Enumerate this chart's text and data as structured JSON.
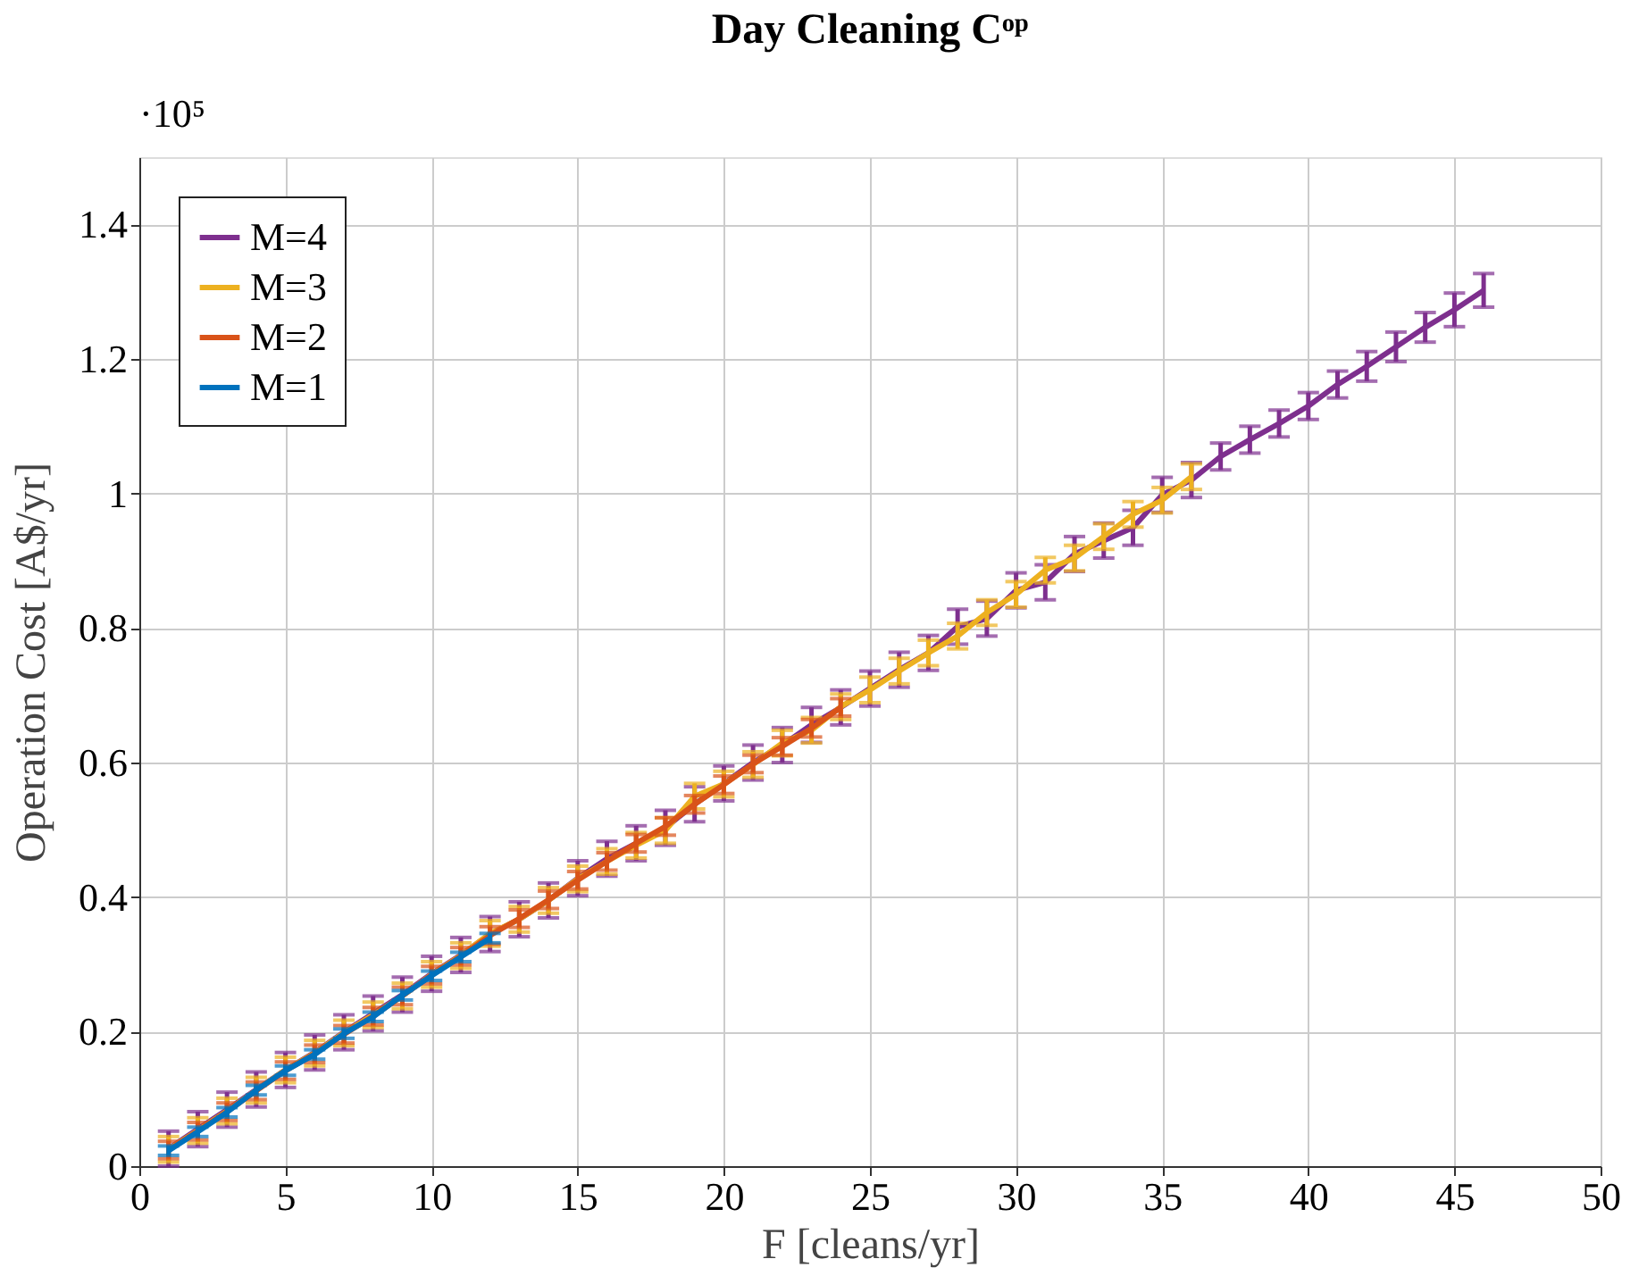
{
  "chart_data": {
    "type": "line",
    "title": "Day Cleaning Cᵒᵖ",
    "xlabel": "F [cleans/yr]",
    "ylabel": "Operation Cost [A$/yr]",
    "annotations": [
      "·10⁵"
    ],
    "xlim": [
      0,
      50
    ],
    "xticks": [
      0,
      5,
      10,
      15,
      20,
      25,
      30,
      35,
      40,
      45,
      50
    ],
    "ylim": [
      0,
      1.5
    ],
    "yticks": [
      0,
      0.2,
      0.4,
      0.6,
      0.8,
      1,
      1.2,
      1.4
    ],
    "grid": true,
    "legend": "top left",
    "marker": "none",
    "line_style": "solid",
    "series": [
      {
        "name": "M=4",
        "color": "#7e2f8e",
        "x": [
          1,
          2,
          3,
          4,
          5,
          6,
          7,
          8,
          9,
          10,
          11,
          12,
          13,
          14,
          15,
          16,
          17,
          18,
          19,
          20,
          21,
          22,
          23,
          24,
          25,
          26,
          27,
          28,
          29,
          30,
          31,
          32,
          33,
          34,
          35,
          36,
          37,
          38,
          39,
          40,
          41,
          42,
          43,
          44,
          45,
          46
        ],
        "values": [
          0.026,
          0.055,
          0.084,
          0.114,
          0.143,
          0.169,
          0.199,
          0.227,
          0.255,
          0.286,
          0.314,
          0.345,
          0.367,
          0.395,
          0.428,
          0.457,
          0.48,
          0.503,
          0.538,
          0.569,
          0.6,
          0.626,
          0.656,
          0.682,
          0.71,
          0.738,
          0.763,
          0.802,
          0.814,
          0.856,
          0.868,
          0.91,
          0.93,
          0.949,
          0.998,
          1.02,
          1.055,
          1.08,
          1.104,
          1.13,
          1.162,
          1.189,
          1.218,
          1.247,
          1.273,
          1.302
        ],
        "errors": [
          0.026,
          0.026,
          0.026,
          0.026,
          0.026,
          0.026,
          0.026,
          0.026,
          0.026,
          0.026,
          0.026,
          0.026,
          0.026,
          0.026,
          0.026,
          0.026,
          0.026,
          0.026,
          0.026,
          0.026,
          0.026,
          0.026,
          0.026,
          0.026,
          0.026,
          0.026,
          0.026,
          0.026,
          0.026,
          0.026,
          0.026,
          0.026,
          0.026,
          0.026,
          0.026,
          0.026,
          0.02,
          0.02,
          0.02,
          0.02,
          0.02,
          0.022,
          0.022,
          0.022,
          0.025,
          0.025
        ]
      },
      {
        "name": "M=3",
        "color": "#edb120",
        "x": [
          1,
          2,
          3,
          4,
          5,
          6,
          7,
          8,
          9,
          10,
          11,
          12,
          13,
          14,
          15,
          16,
          17,
          18,
          19,
          20,
          21,
          22,
          23,
          24,
          25,
          26,
          27,
          28,
          29,
          30,
          31,
          32,
          33,
          34,
          35,
          36
        ],
        "values": [
          0.025,
          0.053,
          0.082,
          0.113,
          0.143,
          0.168,
          0.198,
          0.225,
          0.253,
          0.285,
          0.313,
          0.346,
          0.367,
          0.395,
          0.427,
          0.453,
          0.477,
          0.499,
          0.55,
          0.568,
          0.597,
          0.629,
          0.648,
          0.683,
          0.708,
          0.736,
          0.763,
          0.788,
          0.823,
          0.85,
          0.886,
          0.904,
          0.936,
          0.969,
          0.99,
          1.025
        ],
        "errors": [
          0.019,
          0.019,
          0.019,
          0.019,
          0.019,
          0.019,
          0.019,
          0.019,
          0.019,
          0.019,
          0.019,
          0.019,
          0.019,
          0.019,
          0.019,
          0.019,
          0.019,
          0.019,
          0.019,
          0.019,
          0.019,
          0.019,
          0.019,
          0.019,
          0.019,
          0.019,
          0.019,
          0.019,
          0.019,
          0.019,
          0.019,
          0.019,
          0.019,
          0.019,
          0.019,
          0.019
        ]
      },
      {
        "name": "M=2",
        "color": "#d95319",
        "x": [
          1,
          2,
          3,
          4,
          5,
          6,
          7,
          8,
          9,
          10,
          11,
          12,
          13,
          14,
          15,
          16,
          17,
          18,
          19,
          20,
          21,
          22,
          23,
          24
        ],
        "values": [
          0.024,
          0.052,
          0.081,
          0.112,
          0.142,
          0.167,
          0.196,
          0.223,
          0.253,
          0.284,
          0.312,
          0.343,
          0.368,
          0.396,
          0.425,
          0.453,
          0.48,
          0.505,
          0.538,
          0.567,
          0.598,
          0.624,
          0.651,
          0.682
        ],
        "errors": [
          0.013,
          0.013,
          0.013,
          0.013,
          0.013,
          0.013,
          0.013,
          0.013,
          0.013,
          0.013,
          0.013,
          0.013,
          0.013,
          0.013,
          0.013,
          0.013,
          0.013,
          0.013,
          0.013,
          0.013,
          0.013,
          0.013,
          0.013,
          0.013
        ]
      },
      {
        "name": "M=1",
        "color": "#0072bd",
        "x": [
          1,
          2,
          3,
          4,
          5,
          6,
          7,
          8,
          9,
          10,
          11,
          12
        ],
        "values": [
          0.023,
          0.051,
          0.08,
          0.113,
          0.142,
          0.166,
          0.197,
          0.222,
          0.254,
          0.283,
          0.311,
          0.339
        ],
        "errors": [
          0.007,
          0.007,
          0.007,
          0.007,
          0.007,
          0.007,
          0.007,
          0.007,
          0.007,
          0.007,
          0.007,
          0.007
        ]
      }
    ]
  }
}
